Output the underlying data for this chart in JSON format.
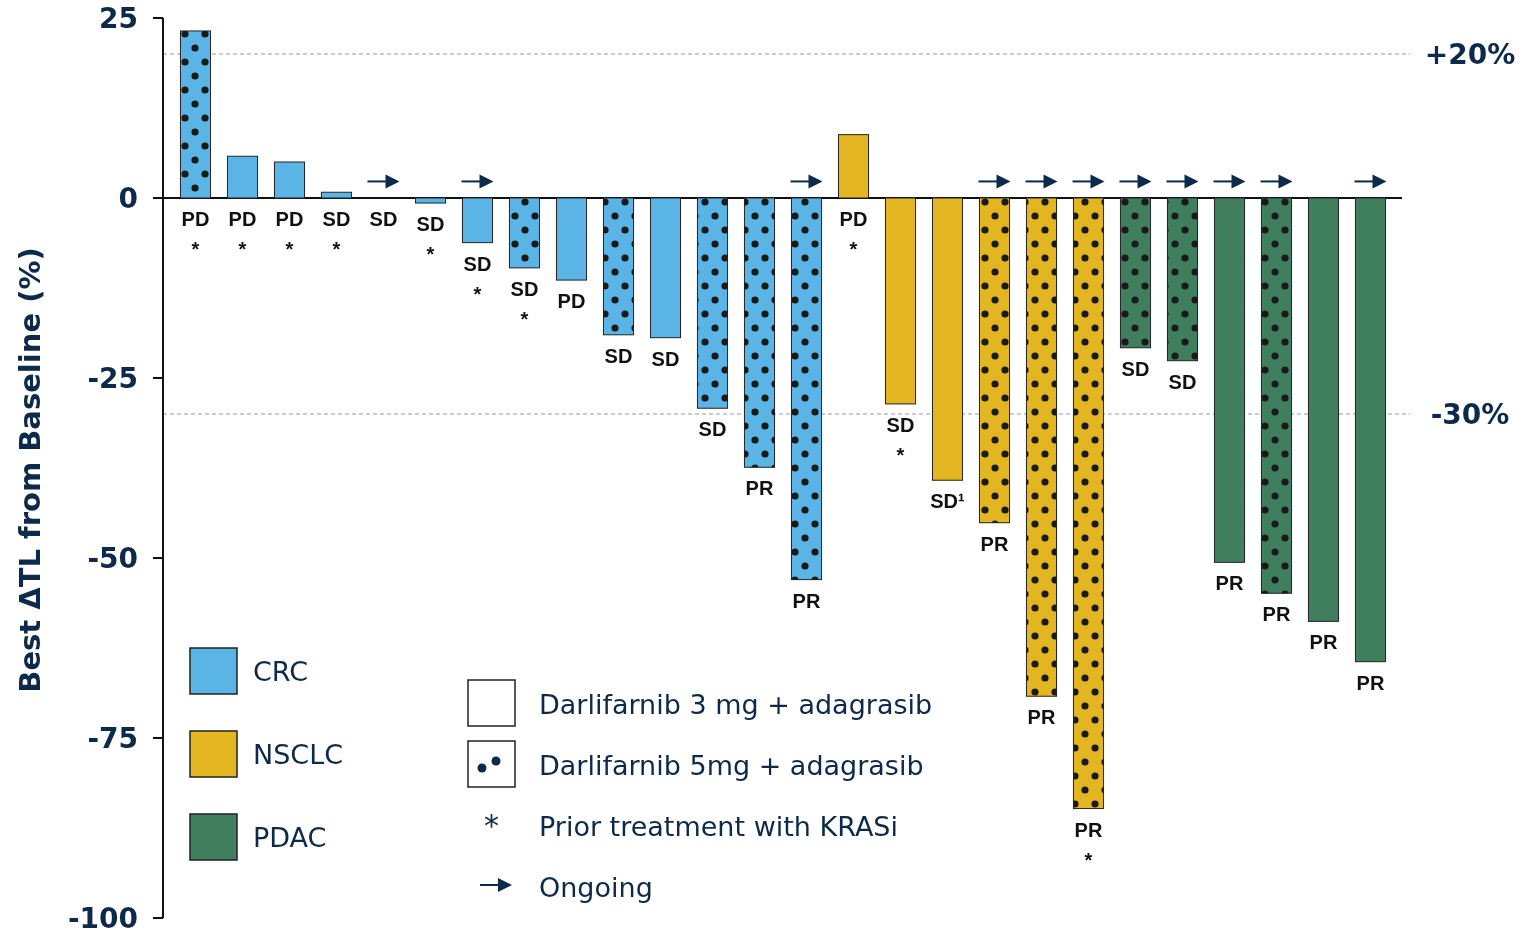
{
  "chart_data": {
    "type": "bar",
    "ylabel": "Best ΔTL from Baseline (%)",
    "categories": [
      null,
      null,
      null,
      null,
      null,
      null,
      null,
      null,
      null,
      null,
      null,
      null,
      null,
      null,
      null,
      null,
      null,
      null,
      null,
      null,
      null,
      null,
      null,
      null,
      null,
      null
    ],
    "series": [
      {
        "name": "CRC",
        "color": "#5bb4e6",
        "values": [
          null,
          null,
          null,
          null,
          null,
          null,
          null,
          null,
          null,
          null,
          null,
          null,
          null,
          null,
          null,
          null,
          null,
          null,
          null,
          null,
          null,
          null,
          null,
          null,
          null,
          null
        ]
      },
      {
        "name": "NSCLC",
        "color": "#e3b621",
        "values": [
          null,
          null,
          null,
          null,
          null,
          null,
          null,
          null,
          null,
          null,
          null,
          null,
          null,
          null,
          null,
          null,
          null,
          null,
          null,
          null,
          null,
          null,
          null,
          null,
          null,
          null
        ]
      },
      {
        "name": "PDAC",
        "color": "#3f7f5d",
        "values": [
          null,
          null,
          null,
          null,
          null,
          null,
          null,
          null,
          null,
          null,
          null,
          null,
          null,
          null,
          null,
          null,
          null,
          null,
          null,
          null,
          null,
          null,
          null,
          null,
          null,
          null
        ]
      },
      {
        "name": "Darlifarnib 3 mg + adagrasib",
        "values": [
          null,
          5.8,
          5.0,
          0.8,
          0,
          -0.7,
          -6.2,
          null,
          -11.4,
          null,
          -19.4,
          null,
          null,
          null,
          8.8,
          -28.6,
          -39.2,
          null,
          null,
          null,
          null,
          null,
          -50.6,
          null,
          -58.8,
          -64.4
        ],
        "colors": [
          "#5bb4e6",
          "#5bb4e6",
          "#5bb4e6",
          "#5bb4e6",
          "#5bb4e6",
          "#5bb4e6",
          "#5bb4e6",
          "#5bb4e6",
          "#5bb4e6",
          "#5bb4e6",
          "#5bb4e6",
          "#5bb4e6",
          "#5bb4e6",
          "#5bb4e6",
          "#e3b621",
          "#e3b621",
          "#e3b621",
          "#e3b621",
          "#e3b621",
          "#e3b621",
          "#3f7f5d",
          "#3f7f5d",
          "#3f7f5d",
          "#3f7f5d",
          "#3f7f5d",
          "#3f7f5d"
        ],
        "value_labels": [
          null,
          "PD\n*",
          "PD\n*",
          "SD\n*",
          "SD",
          "SD\n*",
          "SD\n*",
          null,
          "PD",
          null,
          "SD",
          null,
          null,
          null,
          "PD\n*",
          "SD\n*",
          "SD¹",
          null,
          null,
          null,
          null,
          null,
          "PR",
          null,
          "PR",
          "PR"
        ]
      },
      {
        "name": "Darlifarnib 5mg + adagrasib",
        "values": [
          23.2,
          null,
          null,
          null,
          null,
          null,
          null,
          -9.7,
          null,
          -19.0,
          null,
          -29.2,
          -37.4,
          -53.0,
          null,
          null,
          null,
          -45.1,
          -69.2,
          -84.8,
          -20.8,
          -22.6,
          null,
          -54.9,
          null,
          null
        ],
        "colors": [
          "#5bb4e6",
          "#5bb4e6",
          "#5bb4e6",
          "#5bb4e6",
          "#5bb4e6",
          "#5bb4e6",
          "#5bb4e6",
          "#5bb4e6",
          "#5bb4e6",
          "#5bb4e6",
          "#5bb4e6",
          "#5bb4e6",
          "#5bb4e6",
          "#5bb4e6",
          "#e3b621",
          "#e3b621",
          "#e3b621",
          "#e3b621",
          "#e3b621",
          "#e3b621",
          "#3f7f5d",
          "#3f7f5d",
          "#3f7f5d",
          "#3f7f5d",
          "#3f7f5d",
          "#3f7f5d"
        ],
        "value_labels": [
          "PD\n*",
          null,
          null,
          null,
          null,
          null,
          null,
          "SD\n*",
          null,
          "SD",
          null,
          "SD",
          "PR",
          "PR",
          null,
          null,
          null,
          "PR",
          "PR",
          "PR\n*",
          "SD",
          "SD",
          null,
          "PR",
          null,
          null
        ]
      },
      {
        "name": "Ongoing",
        "type": "scatter",
        "marker": "triangle",
        "color": "#0d2a4a",
        "values": [
          null,
          null,
          null,
          null,
          2.3,
          null,
          2.3,
          null,
          null,
          null,
          null,
          null,
          null,
          2.3,
          null,
          null,
          null,
          2.3,
          2.3,
          2.3,
          2.3,
          2.3,
          2.3,
          2.3,
          null,
          2.3
        ]
      }
    ],
    "ylim": [
      -100,
      25
    ],
    "yticks": [
      25,
      0,
      -25,
      -50,
      -75,
      -100
    ],
    "ref_lines": [
      {
        "axis": "y",
        "value": 20,
        "label": "+20%",
        "color": "#999999",
        "line_style": "dashed"
      },
      {
        "axis": "y",
        "value": -30,
        "label": "-30%",
        "color": "#999999",
        "line_style": "dashed"
      }
    ],
    "annotations": [
      "* Prior treatment with KRASi"
    ],
    "legend": "bottom left"
  }
}
